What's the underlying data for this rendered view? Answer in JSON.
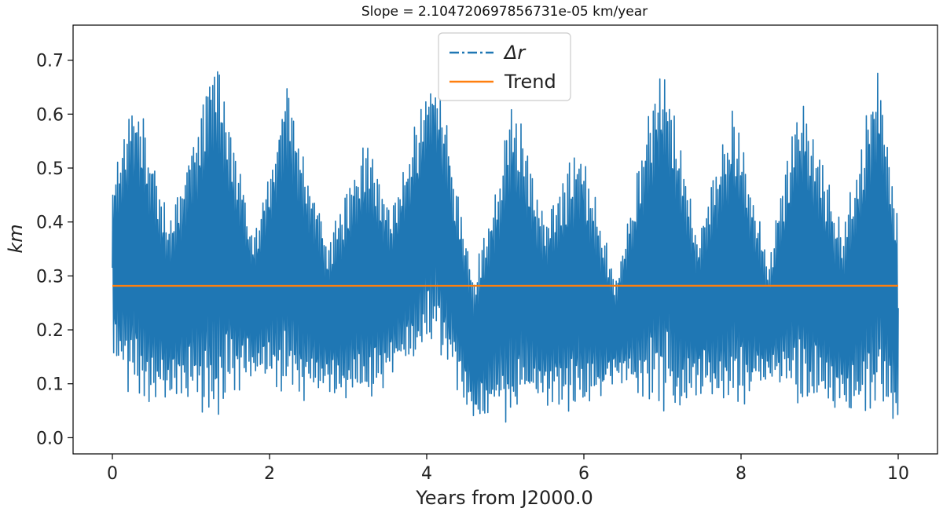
{
  "chart_data": {
    "type": "line",
    "title": "Slope = 2.104720697856731e-05 km/year",
    "xlabel": "Years from J2000.0",
    "ylabel": "km",
    "xlim": [
      -0.5,
      10.5
    ],
    "ylim": [
      -0.03,
      0.765
    ],
    "xticks": [
      0,
      2,
      4,
      6,
      8,
      10
    ],
    "xtick_labels": [
      "0",
      "2",
      "4",
      "6",
      "8",
      "10"
    ],
    "yticks": [
      0.0,
      0.1,
      0.2,
      0.3,
      0.4,
      0.5,
      0.6,
      0.7
    ],
    "ytick_labels": [
      "0.0",
      "0.1",
      "0.2",
      "0.3",
      "0.4",
      "0.5",
      "0.6",
      "0.7"
    ],
    "grid": false,
    "legend_position": "top-center",
    "legend": [
      "Δr",
      "Trend"
    ],
    "colors": {
      "delta_r": "#1f77b4",
      "trend": "#ff7f0e"
    },
    "series": [
      {
        "name": "Δr",
        "style": "dash-dot",
        "color": "#1f77b4",
        "x_range": [
          0,
          10
        ],
        "envelope": {
          "x": [
            0.0,
            0.3,
            0.72,
            1.3,
            1.8,
            2.2,
            2.75,
            3.2,
            3.55,
            4.1,
            4.6,
            5.1,
            5.5,
            5.95,
            6.4,
            7.0,
            7.45,
            7.9,
            8.35,
            8.75,
            9.3,
            9.75,
            10.0
          ],
          "upper": [
            0.48,
            0.67,
            0.41,
            0.735,
            0.38,
            0.68,
            0.37,
            0.56,
            0.43,
            0.72,
            0.3,
            0.64,
            0.42,
            0.56,
            0.3,
            0.73,
            0.39,
            0.63,
            0.33,
            0.66,
            0.39,
            0.725,
            0.42
          ],
          "lower": [
            0.15,
            0.05,
            0.07,
            0.03,
            0.12,
            0.05,
            0.08,
            0.05,
            0.11,
            0.15,
            0.03,
            0.02,
            0.06,
            0.03,
            0.1,
            0.03,
            0.08,
            0.04,
            0.1,
            0.05,
            0.05,
            0.03,
            0.03
          ]
        }
      },
      {
        "name": "Trend",
        "style": "solid",
        "color": "#ff7f0e",
        "x": [
          0,
          10
        ],
        "y": [
          0.2816,
          0.2818
        ]
      }
    ]
  }
}
